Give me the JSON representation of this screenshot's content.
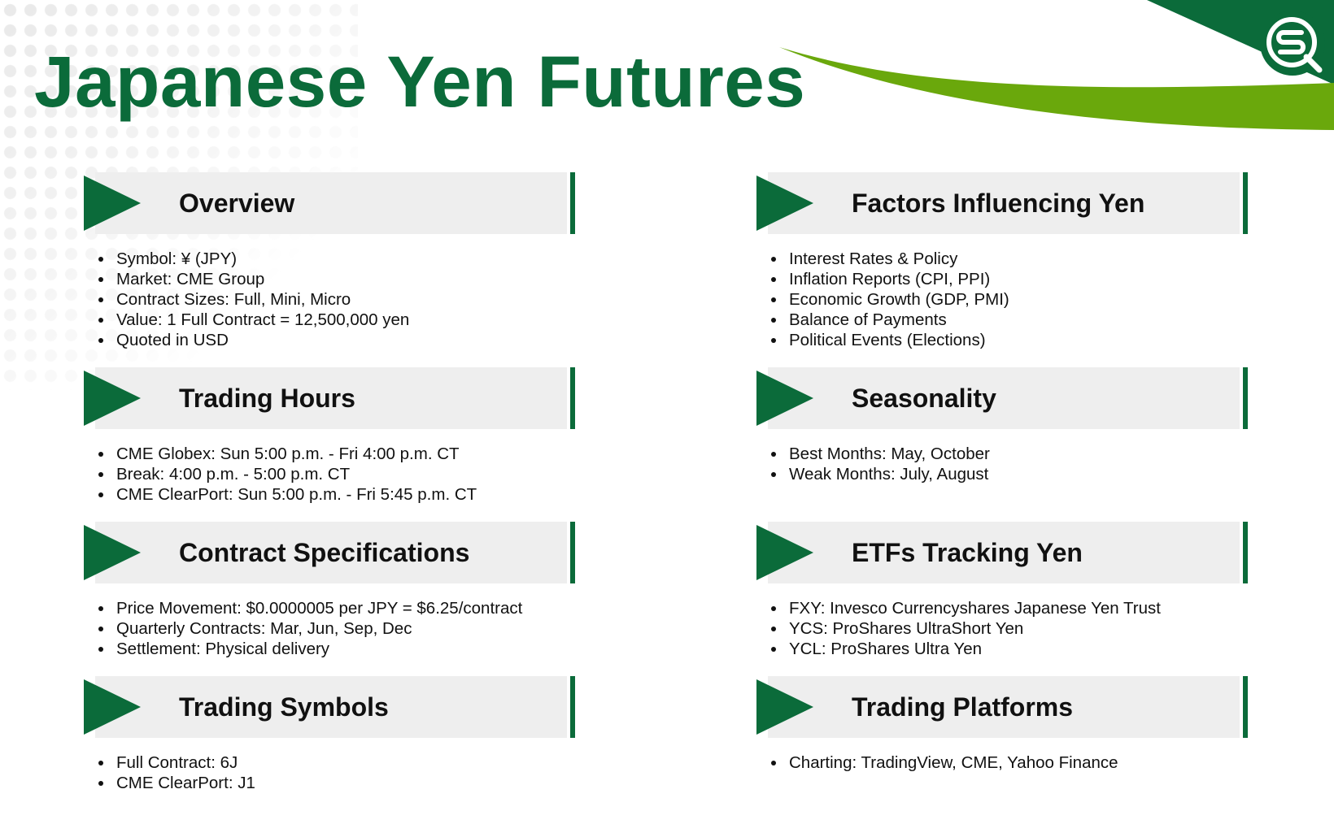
{
  "title": "Japanese Yen Futures",
  "logo": {
    "icon": "circled-sq-logo",
    "brand_color": "#0b6b3a"
  },
  "colors": {
    "primary_green": "#0b6b3a",
    "accent_green": "#6aa80c",
    "header_band": "#eeeeee"
  },
  "sections": [
    {
      "title": "Overview",
      "items": [
        "Symbol: ¥ (JPY)",
        "Market: CME Group",
        "Contract Sizes: Full, Mini, Micro",
        "Value: 1 Full Contract = 12,500,000 yen",
        "Quoted in USD"
      ]
    },
    {
      "title": "Factors Influencing Yen",
      "items": [
        "Interest Rates & Policy",
        "Inflation Reports (CPI, PPI)",
        "Economic Growth (GDP, PMI)",
        "Balance of Payments",
        "Political Events (Elections)"
      ]
    },
    {
      "title": "Trading Hours",
      "items": [
        "CME Globex: Sun 5:00 p.m. - Fri 4:00 p.m. CT",
        "Break: 4:00 p.m. - 5:00 p.m. CT",
        "CME ClearPort: Sun 5:00 p.m. - Fri 5:45 p.m. CT"
      ]
    },
    {
      "title": "Seasonality",
      "items": [
        "Best Months: May, October",
        "Weak Months: July, August"
      ]
    },
    {
      "title": "Contract Specifications",
      "items": [
        "Price Movement: $0.0000005 per JPY = $6.25/contract",
        "Quarterly Contracts: Mar, Jun, Sep, Dec",
        "Settlement: Physical delivery"
      ]
    },
    {
      "title": "ETFs Tracking Yen",
      "items": [
        "FXY: Invesco Currencyshares Japanese Yen Trust",
        "YCS: ProShares UltraShort Yen",
        "YCL: ProShares Ultra Yen"
      ]
    },
    {
      "title": "Trading Symbols",
      "items": [
        "Full Contract: 6J",
        "CME ClearPort: J1"
      ]
    },
    {
      "title": "Trading Platforms",
      "items": [
        "Charting: TradingView, CME, Yahoo Finance"
      ]
    }
  ]
}
